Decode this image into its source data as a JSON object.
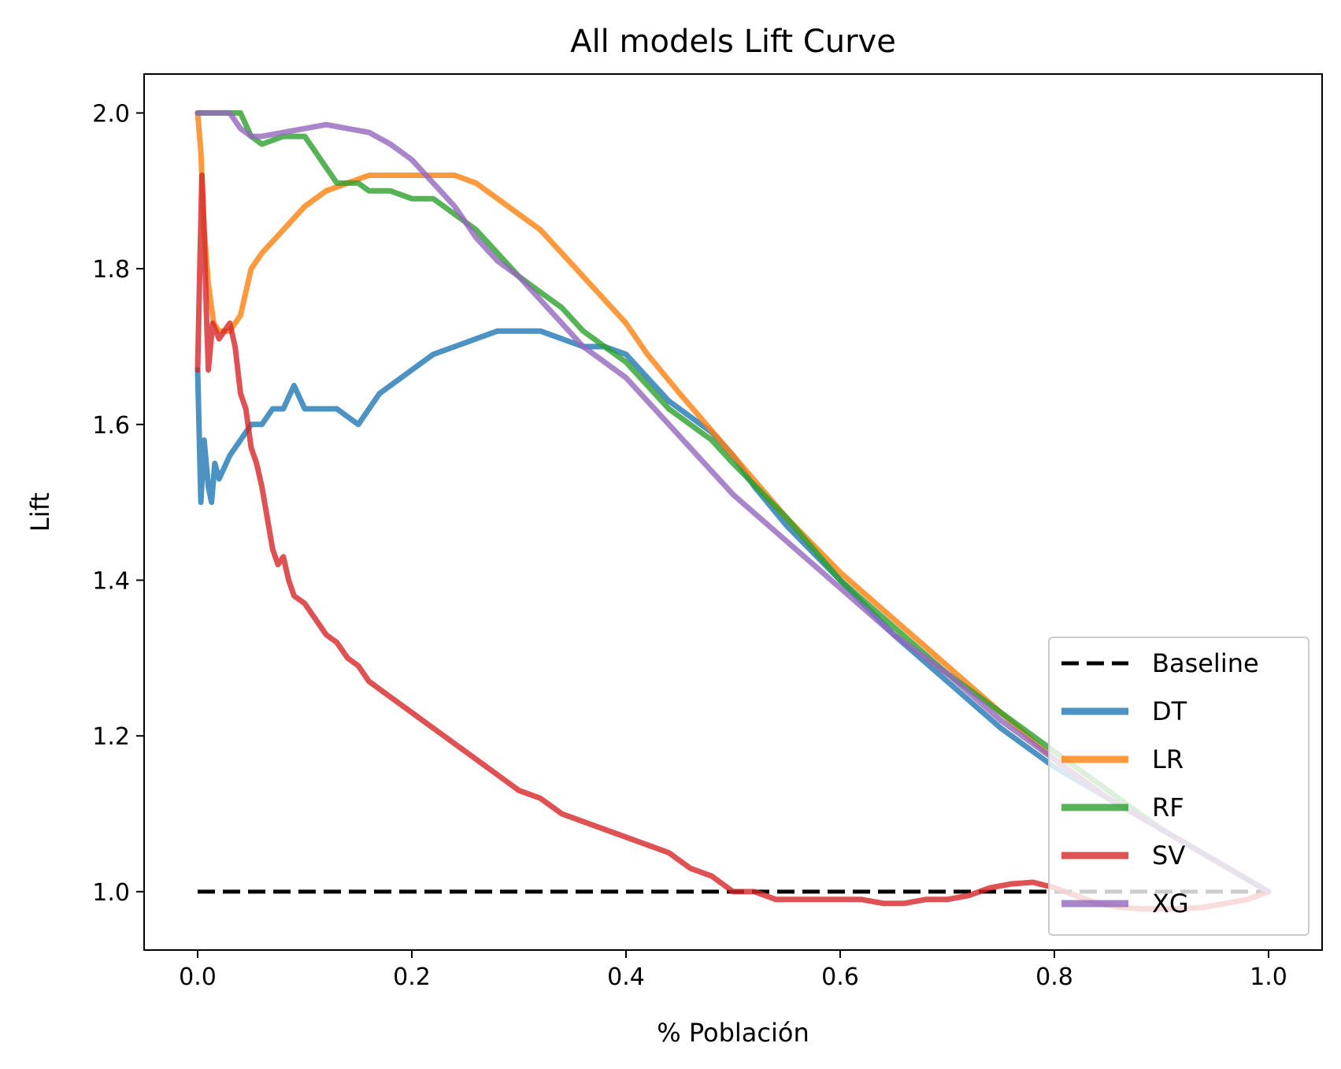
{
  "chart_data": {
    "type": "line",
    "title": "All models Lift Curve",
    "xlabel": "% Población",
    "ylabel": "Lift",
    "xlim": [
      -0.05,
      1.05
    ],
    "ylim": [
      0.925,
      2.05
    ],
    "xticks": [
      {
        "value": 0.0,
        "label": "0.0"
      },
      {
        "value": 0.2,
        "label": "0.2"
      },
      {
        "value": 0.4,
        "label": "0.4"
      },
      {
        "value": 0.6,
        "label": "0.6"
      },
      {
        "value": 0.8,
        "label": "0.8"
      },
      {
        "value": 1.0,
        "label": "1.0"
      }
    ],
    "yticks": [
      {
        "value": 1.0,
        "label": "1.0"
      },
      {
        "value": 1.2,
        "label": "1.2"
      },
      {
        "value": 1.4,
        "label": "1.4"
      },
      {
        "value": 1.6,
        "label": "1.6"
      },
      {
        "value": 1.8,
        "label": "1.8"
      },
      {
        "value": 2.0,
        "label": "2.0"
      }
    ],
    "grid": false,
    "legend_position": "lower-right",
    "series": [
      {
        "name": "Baseline",
        "color": "#000000",
        "dashed": true,
        "x": [
          0.0,
          1.0
        ],
        "y": [
          1.0,
          1.0
        ]
      },
      {
        "name": "DT",
        "color": "#1f77b4",
        "x": [
          0.0,
          0.003,
          0.006,
          0.01,
          0.013,
          0.016,
          0.02,
          0.03,
          0.04,
          0.05,
          0.06,
          0.07,
          0.08,
          0.09,
          0.1,
          0.11,
          0.12,
          0.13,
          0.14,
          0.15,
          0.16,
          0.17,
          0.18,
          0.2,
          0.22,
          0.24,
          0.26,
          0.28,
          0.3,
          0.32,
          0.34,
          0.36,
          0.38,
          0.4,
          0.42,
          0.44,
          0.46,
          0.48,
          0.5,
          0.52,
          0.55,
          0.6,
          0.65,
          0.7,
          0.75,
          0.8,
          0.85,
          0.9,
          0.95,
          1.0
        ],
        "y": [
          1.67,
          1.5,
          1.58,
          1.52,
          1.5,
          1.55,
          1.53,
          1.56,
          1.58,
          1.6,
          1.6,
          1.62,
          1.62,
          1.65,
          1.62,
          1.62,
          1.62,
          1.62,
          1.61,
          1.6,
          1.62,
          1.64,
          1.65,
          1.67,
          1.69,
          1.7,
          1.71,
          1.72,
          1.72,
          1.72,
          1.71,
          1.7,
          1.7,
          1.69,
          1.66,
          1.63,
          1.61,
          1.59,
          1.56,
          1.52,
          1.47,
          1.4,
          1.33,
          1.27,
          1.21,
          1.16,
          1.12,
          1.08,
          1.04,
          1.0
        ]
      },
      {
        "name": "LR",
        "color": "#ff7f0e",
        "x": [
          0.0,
          0.003,
          0.006,
          0.01,
          0.015,
          0.02,
          0.03,
          0.04,
          0.05,
          0.06,
          0.08,
          0.1,
          0.12,
          0.14,
          0.16,
          0.18,
          0.2,
          0.22,
          0.24,
          0.26,
          0.28,
          0.3,
          0.32,
          0.34,
          0.36,
          0.38,
          0.4,
          0.42,
          0.45,
          0.5,
          0.55,
          0.6,
          0.65,
          0.7,
          0.75,
          0.8,
          0.85,
          0.9,
          0.95,
          1.0
        ],
        "y": [
          2.0,
          1.95,
          1.85,
          1.78,
          1.73,
          1.72,
          1.72,
          1.74,
          1.8,
          1.82,
          1.85,
          1.88,
          1.9,
          1.91,
          1.92,
          1.92,
          1.92,
          1.92,
          1.92,
          1.91,
          1.89,
          1.87,
          1.85,
          1.82,
          1.79,
          1.76,
          1.73,
          1.69,
          1.64,
          1.56,
          1.48,
          1.41,
          1.35,
          1.29,
          1.23,
          1.17,
          1.12,
          1.08,
          1.04,
          1.0
        ]
      },
      {
        "name": "RF",
        "color": "#2ca02c",
        "x": [
          0.0,
          0.02,
          0.04,
          0.05,
          0.06,
          0.08,
          0.1,
          0.11,
          0.12,
          0.13,
          0.14,
          0.15,
          0.16,
          0.18,
          0.2,
          0.22,
          0.24,
          0.26,
          0.28,
          0.3,
          0.32,
          0.34,
          0.36,
          0.38,
          0.4,
          0.42,
          0.44,
          0.46,
          0.48,
          0.5,
          0.55,
          0.6,
          0.65,
          0.7,
          0.75,
          0.8,
          0.85,
          0.9,
          0.95,
          1.0
        ],
        "y": [
          2.0,
          2.0,
          2.0,
          1.97,
          1.96,
          1.97,
          1.97,
          1.95,
          1.93,
          1.91,
          1.91,
          1.91,
          1.9,
          1.9,
          1.89,
          1.89,
          1.87,
          1.85,
          1.82,
          1.79,
          1.77,
          1.75,
          1.72,
          1.7,
          1.68,
          1.65,
          1.62,
          1.6,
          1.58,
          1.55,
          1.48,
          1.4,
          1.34,
          1.28,
          1.23,
          1.18,
          1.13,
          1.08,
          1.04,
          1.0
        ]
      },
      {
        "name": "SV",
        "color": "#d62728",
        "x": [
          0.0,
          0.002,
          0.004,
          0.006,
          0.008,
          0.01,
          0.012,
          0.014,
          0.017,
          0.02,
          0.025,
          0.03,
          0.035,
          0.04,
          0.045,
          0.05,
          0.055,
          0.06,
          0.065,
          0.07,
          0.075,
          0.08,
          0.085,
          0.09,
          0.1,
          0.11,
          0.12,
          0.13,
          0.14,
          0.15,
          0.16,
          0.18,
          0.2,
          0.22,
          0.24,
          0.26,
          0.28,
          0.3,
          0.32,
          0.34,
          0.36,
          0.38,
          0.4,
          0.42,
          0.44,
          0.46,
          0.48,
          0.5,
          0.52,
          0.54,
          0.56,
          0.58,
          0.6,
          0.62,
          0.64,
          0.66,
          0.68,
          0.7,
          0.72,
          0.74,
          0.76,
          0.78,
          0.8,
          0.82,
          0.84,
          0.86,
          0.88,
          0.9,
          0.92,
          0.94,
          0.96,
          0.98,
          1.0
        ],
        "y": [
          1.67,
          1.8,
          1.92,
          1.85,
          1.75,
          1.67,
          1.7,
          1.73,
          1.72,
          1.71,
          1.72,
          1.73,
          1.7,
          1.64,
          1.62,
          1.57,
          1.55,
          1.52,
          1.48,
          1.44,
          1.42,
          1.43,
          1.4,
          1.38,
          1.37,
          1.35,
          1.33,
          1.32,
          1.3,
          1.29,
          1.27,
          1.25,
          1.23,
          1.21,
          1.19,
          1.17,
          1.15,
          1.13,
          1.12,
          1.1,
          1.09,
          1.08,
          1.07,
          1.06,
          1.05,
          1.03,
          1.02,
          1.0,
          1.0,
          0.99,
          0.99,
          0.99,
          0.99,
          0.99,
          0.985,
          0.985,
          0.99,
          0.99,
          0.995,
          1.005,
          1.01,
          1.012,
          1.005,
          0.995,
          0.985,
          0.98,
          0.978,
          0.978,
          0.978,
          0.98,
          0.985,
          0.99,
          1.0
        ]
      },
      {
        "name": "XG",
        "color": "#9467bd",
        "x": [
          0.0,
          0.02,
          0.03,
          0.04,
          0.05,
          0.06,
          0.08,
          0.1,
          0.12,
          0.14,
          0.16,
          0.18,
          0.2,
          0.22,
          0.24,
          0.26,
          0.28,
          0.3,
          0.32,
          0.34,
          0.36,
          0.38,
          0.4,
          0.42,
          0.44,
          0.46,
          0.48,
          0.5,
          0.55,
          0.6,
          0.65,
          0.7,
          0.75,
          0.8,
          0.85,
          0.9,
          0.95,
          1.0
        ],
        "y": [
          2.0,
          2.0,
          2.0,
          1.98,
          1.97,
          1.97,
          1.975,
          1.98,
          1.985,
          1.98,
          1.975,
          1.96,
          1.94,
          1.91,
          1.88,
          1.84,
          1.81,
          1.79,
          1.76,
          1.73,
          1.7,
          1.68,
          1.66,
          1.63,
          1.6,
          1.57,
          1.54,
          1.51,
          1.45,
          1.39,
          1.33,
          1.28,
          1.22,
          1.17,
          1.12,
          1.08,
          1.04,
          1.0
        ]
      }
    ]
  }
}
